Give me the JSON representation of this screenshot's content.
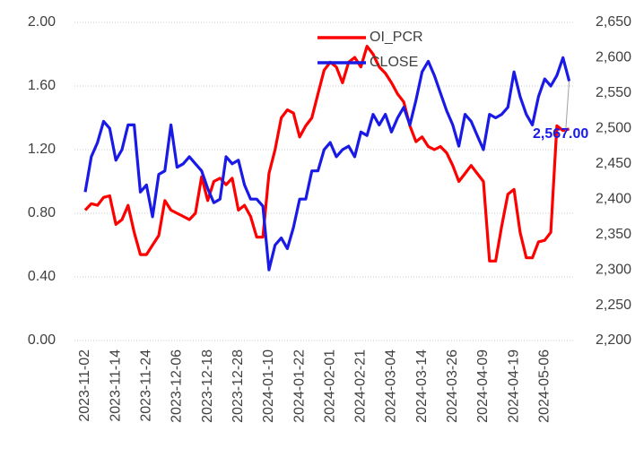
{
  "chart_data": {
    "type": "line",
    "categories": [
      "2023-11-02",
      null,
      null,
      null,
      null,
      "2023-11-14",
      null,
      null,
      null,
      null,
      "2023-11-24",
      null,
      null,
      null,
      null,
      "2023-12-06",
      null,
      null,
      null,
      null,
      "2023-12-18",
      null,
      null,
      null,
      null,
      "2023-12-28",
      null,
      null,
      null,
      null,
      "2024-01-10",
      null,
      null,
      null,
      null,
      "2024-01-22",
      null,
      null,
      null,
      null,
      "2024-02-01",
      null,
      null,
      null,
      null,
      "2024-02-21",
      null,
      null,
      null,
      null,
      "2024-03-04",
      null,
      null,
      null,
      null,
      "2024-03-14",
      null,
      null,
      null,
      null,
      "2024-03-26",
      null,
      null,
      null,
      null,
      "2024-04-09",
      null,
      null,
      null,
      null,
      "2024-04-19",
      null,
      null,
      null,
      null,
      "2024-05-06",
      null,
      null,
      null,
      null
    ],
    "series": [
      {
        "name": "OI_PCR",
        "color": "#ff0000",
        "values": [
          0.82,
          0.86,
          0.85,
          0.9,
          0.91,
          0.73,
          0.76,
          0.85,
          0.68,
          0.54,
          0.54,
          0.6,
          0.66,
          0.88,
          0.82,
          0.8,
          0.78,
          0.76,
          0.8,
          1.03,
          0.88,
          1.0,
          1.02,
          0.98,
          1.02,
          0.82,
          0.85,
          0.78,
          0.65,
          0.65,
          1.05,
          1.2,
          1.4,
          1.45,
          1.43,
          1.28,
          1.35,
          1.4,
          1.55,
          1.7,
          1.75,
          1.72,
          1.62,
          1.75,
          1.78,
          1.72,
          1.85,
          1.8,
          1.72,
          1.68,
          1.62,
          1.55,
          1.5,
          1.35,
          1.25,
          1.28,
          1.22,
          1.2,
          1.22,
          1.18,
          1.1,
          1.0,
          1.05,
          1.1,
          1.05,
          1.0,
          0.5,
          0.5,
          0.72,
          0.92,
          0.95,
          0.68,
          0.52,
          0.52,
          0.62,
          0.63,
          0.68,
          1.35,
          1.32,
          1.33
        ]
      },
      {
        "name": "CLOSE",
        "color": "#1a1ae6",
        "axis": "y2",
        "values": [
          2410,
          2460,
          2480,
          2510,
          2500,
          2455,
          2470,
          2505,
          2505,
          2410,
          2420,
          2375,
          2435,
          2440,
          2505,
          2445,
          2450,
          2460,
          2450,
          2440,
          2415,
          2395,
          2400,
          2460,
          2450,
          2455,
          2420,
          2400,
          2400,
          2390,
          2300,
          2335,
          2345,
          2330,
          2360,
          2400,
          2400,
          2440,
          2440,
          2470,
          2480,
          2460,
          2470,
          2475,
          2460,
          2495,
          2490,
          2520,
          2505,
          2520,
          2495,
          2515,
          2530,
          2505,
          2540,
          2580,
          2595,
          2575,
          2550,
          2525,
          2505,
          2475,
          2520,
          2510,
          2490,
          2470,
          2520,
          2515,
          2520,
          2530,
          2580,
          2545,
          2520,
          2505,
          2545,
          2570,
          2560,
          2575,
          2600,
          2567
        ]
      }
    ],
    "annotation": "2,567.00",
    "ylim": [
      0,
      2
    ],
    "yticks": [
      {
        "value": 0,
        "label": "0.00"
      },
      {
        "value": 0.4,
        "label": "0.40"
      },
      {
        "value": 0.8,
        "label": "0.80"
      },
      {
        "value": 1.2,
        "label": "1.20"
      },
      {
        "value": 1.6,
        "label": "1.60"
      },
      {
        "value": 2,
        "label": "2.00"
      }
    ],
    "y2lim": [
      2200,
      2650
    ],
    "y2ticks": [
      {
        "value": 2200,
        "label": "2,200"
      },
      {
        "value": 2250,
        "label": "2,250"
      },
      {
        "value": 2300,
        "label": "2,300"
      },
      {
        "value": 2350,
        "label": "2,350"
      },
      {
        "value": 2400,
        "label": "2,400"
      },
      {
        "value": 2450,
        "label": "2,450"
      },
      {
        "value": 2500,
        "label": "2,500"
      },
      {
        "value": 2550,
        "label": "2,550"
      },
      {
        "value": 2600,
        "label": "2,600"
      },
      {
        "value": 2650,
        "label": "2,650"
      }
    ],
    "grid": true,
    "legend": "top"
  }
}
